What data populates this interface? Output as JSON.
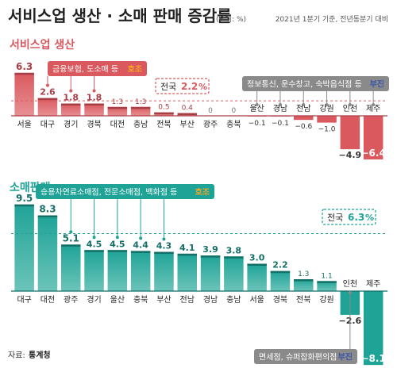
{
  "header": {
    "title": "서비스업 생산 · 소매 판매 증감률",
    "unit": "(단위: %)",
    "basis": "2021년 1분기 기준, 전년동분기 대비"
  },
  "source": {
    "label": "자료:",
    "name": "통계청"
  },
  "colors": {
    "service_main": "#d9595f",
    "service_dark": "#a83e45",
    "service_light": "#e78f93",
    "retail_main": "#1fa397",
    "retail_dark": "#146f67",
    "retail_light": "#6cc4b9",
    "positive_text": "#f6a623",
    "negative_text": "#3b57a8"
  },
  "chart_data": [
    {
      "type": "bar",
      "title": "서비스업 생산",
      "categories": [
        "서울",
        "대구",
        "경기",
        "경북",
        "대전",
        "충남",
        "전북",
        "부산",
        "광주",
        "충북",
        "울산",
        "경남",
        "전남",
        "강원",
        "인천",
        "제주"
      ],
      "values": [
        6.3,
        2.6,
        1.8,
        1.8,
        1.3,
        1.3,
        0.5,
        0.4,
        0,
        0,
        -0.1,
        -0.1,
        -0.6,
        -1.0,
        -4.9,
        -6.4
      ],
      "value_labels": [
        "6.3",
        "2.6",
        "1.8",
        "1.8",
        "1.3",
        "1.3",
        "0.5",
        "0.4",
        "0",
        "0",
        "−0.1",
        "−0.1",
        "−0.6",
        "−1.0",
        "−4.9",
        "−6.4"
      ],
      "national": {
        "label": "전국",
        "value": 2.2,
        "value_text": "2.2",
        "unit": "%"
      },
      "annotations": {
        "positive": {
          "text": "금융보험, 도소매 등",
          "tag": "호조"
        },
        "negative": {
          "text": "정보통신, 운수창고, 숙박음식점 등",
          "tag": "부진"
        }
      }
    },
    {
      "type": "bar",
      "title": "소매판매",
      "categories": [
        "대구",
        "대전",
        "광주",
        "경기",
        "울산",
        "충북",
        "부산",
        "전남",
        "경남",
        "충남",
        "서울",
        "경북",
        "전북",
        "강원",
        "인천",
        "제주"
      ],
      "values": [
        9.5,
        8.3,
        5.1,
        4.5,
        4.5,
        4.4,
        4.3,
        4.1,
        3.9,
        3.8,
        3.0,
        2.2,
        1.3,
        1.1,
        -2.6,
        -8.1
      ],
      "value_labels": [
        "9.5",
        "8.3",
        "5.1",
        "4.5",
        "4.5",
        "4.4",
        "4.3",
        "4.1",
        "3.9",
        "3.8",
        "3.0",
        "2.2",
        "1.3",
        "1.1",
        "−2.6",
        "−8.1"
      ],
      "national": {
        "label": "전국",
        "value": 6.3,
        "value_text": "6.3",
        "unit": "%"
      },
      "annotations": {
        "positive": {
          "text": "승용차연료소매점, 전문소매점, 백화점 등",
          "tag": "호조"
        },
        "negative": {
          "text": "면세점, 슈퍼잡화편의점",
          "tag": "부진"
        }
      }
    }
  ]
}
